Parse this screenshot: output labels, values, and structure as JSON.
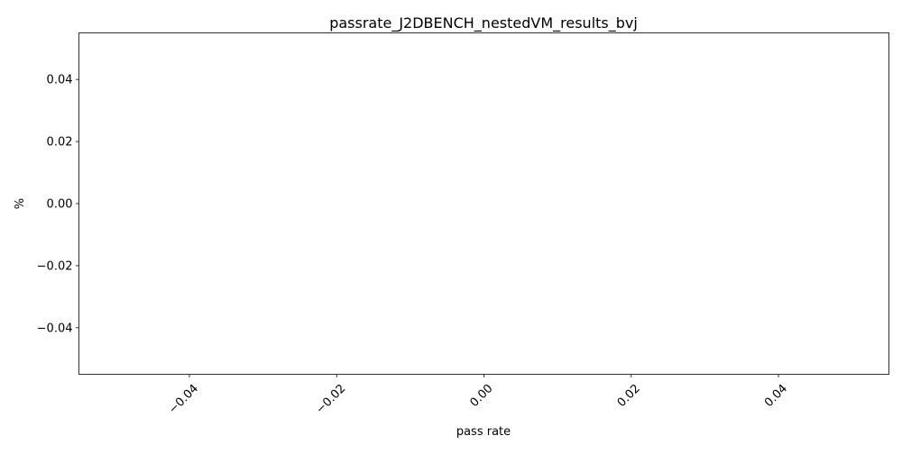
{
  "chart_data": {
    "type": "line",
    "title": "passrate_J2DBENCH_nestedVM_results_bvj",
    "xlabel": "pass rate",
    "ylabel": "%",
    "xlim": [
      -0.055,
      0.055
    ],
    "ylim": [
      -0.055,
      0.055
    ],
    "x_ticks": [
      -0.04,
      -0.02,
      0.0,
      0.02,
      0.04
    ],
    "x_tick_labels": [
      "−0.04",
      "−0.02",
      "0.00",
      "0.02",
      "0.04"
    ],
    "y_ticks": [
      0.04,
      0.02,
      0.0,
      -0.02,
      -0.04
    ],
    "y_tick_labels": [
      "0.04",
      "0.02",
      "0.00",
      "−0.02",
      "−0.04"
    ],
    "x_tick_rotation": 45,
    "grid": false,
    "legend": "none",
    "series": []
  }
}
